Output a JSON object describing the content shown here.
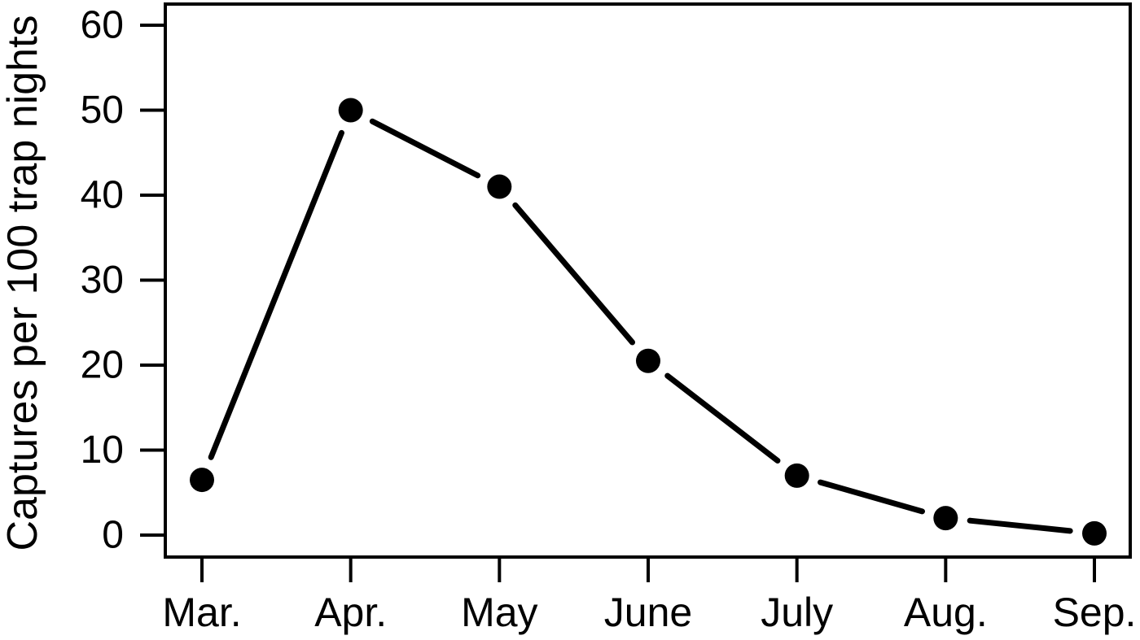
{
  "chart_data": {
    "type": "line",
    "title": "",
    "xlabel": "",
    "ylabel": "Captures per 100 trap nights",
    "categories": [
      "Mar.",
      "Apr.",
      "May",
      "June",
      "July",
      "Aug.",
      "Sep."
    ],
    "values": [
      6.5,
      50,
      41,
      20.5,
      7,
      2,
      0.2
    ],
    "y_ticks": [
      0,
      10,
      20,
      30,
      40,
      50,
      60
    ],
    "ylim": [
      0,
      60
    ],
    "grid": false,
    "legend_position": "none",
    "marker": "filled-circle",
    "line_style": "solid-with-gaps-at-markers",
    "colors": {
      "line": "#000000",
      "marker": "#000000",
      "axis": "#000000",
      "background": "#ffffff"
    }
  }
}
